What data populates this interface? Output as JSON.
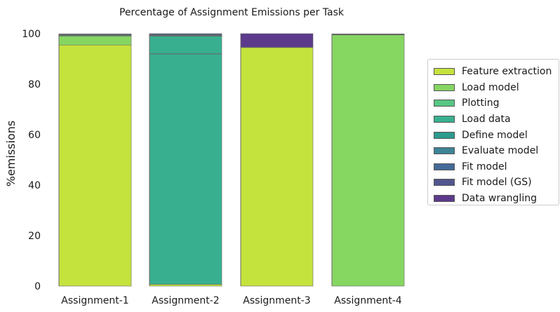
{
  "chart_data": {
    "type": "bar",
    "stacked": true,
    "title": "Percentage of Assignment Emissions per Task",
    "xlabel": "",
    "ylabel": "%emissions",
    "ylim": [
      0,
      100
    ],
    "yticks": [
      0,
      20,
      40,
      60,
      80,
      100
    ],
    "grid": false,
    "legend_position": "right",
    "categories": [
      "Assignment-1",
      "Assignment-2",
      "Assignment-3",
      "Assignment-4"
    ],
    "series": [
      {
        "name": "Feature extraction",
        "color": "#c5e33d",
        "values": [
          95.5,
          0.7,
          94.5,
          0
        ]
      },
      {
        "name": "Load model",
        "color": "#86d662",
        "values": [
          3.5,
          0,
          0,
          99.5
        ]
      },
      {
        "name": "Plotting",
        "color": "#57c784",
        "values": [
          0.3,
          0,
          0,
          0.2
        ]
      },
      {
        "name": "Load data",
        "color": "#38b090",
        "values": [
          0.2,
          98.3,
          0,
          0
        ]
      },
      {
        "name": "Define model",
        "color": "#2d9a8e",
        "values": [
          0.1,
          0.2,
          0,
          0.1
        ]
      },
      {
        "name": "Evaluate model",
        "color": "#3c8496",
        "values": [
          0.2,
          0.2,
          0,
          0
        ]
      },
      {
        "name": "Fit model",
        "color": "#456a9a",
        "values": [
          0.1,
          0.3,
          0.2,
          0.1
        ]
      },
      {
        "name": "Fit model (GS)",
        "color": "#52568f",
        "values": [
          0,
          0.3,
          0,
          0
        ]
      },
      {
        "name": "Data wrangling",
        "color": "#5c3a8c",
        "values": [
          0,
          0,
          5.3,
          0
        ]
      }
    ],
    "inner_line_at": [
      null,
      92,
      null,
      null
    ]
  }
}
